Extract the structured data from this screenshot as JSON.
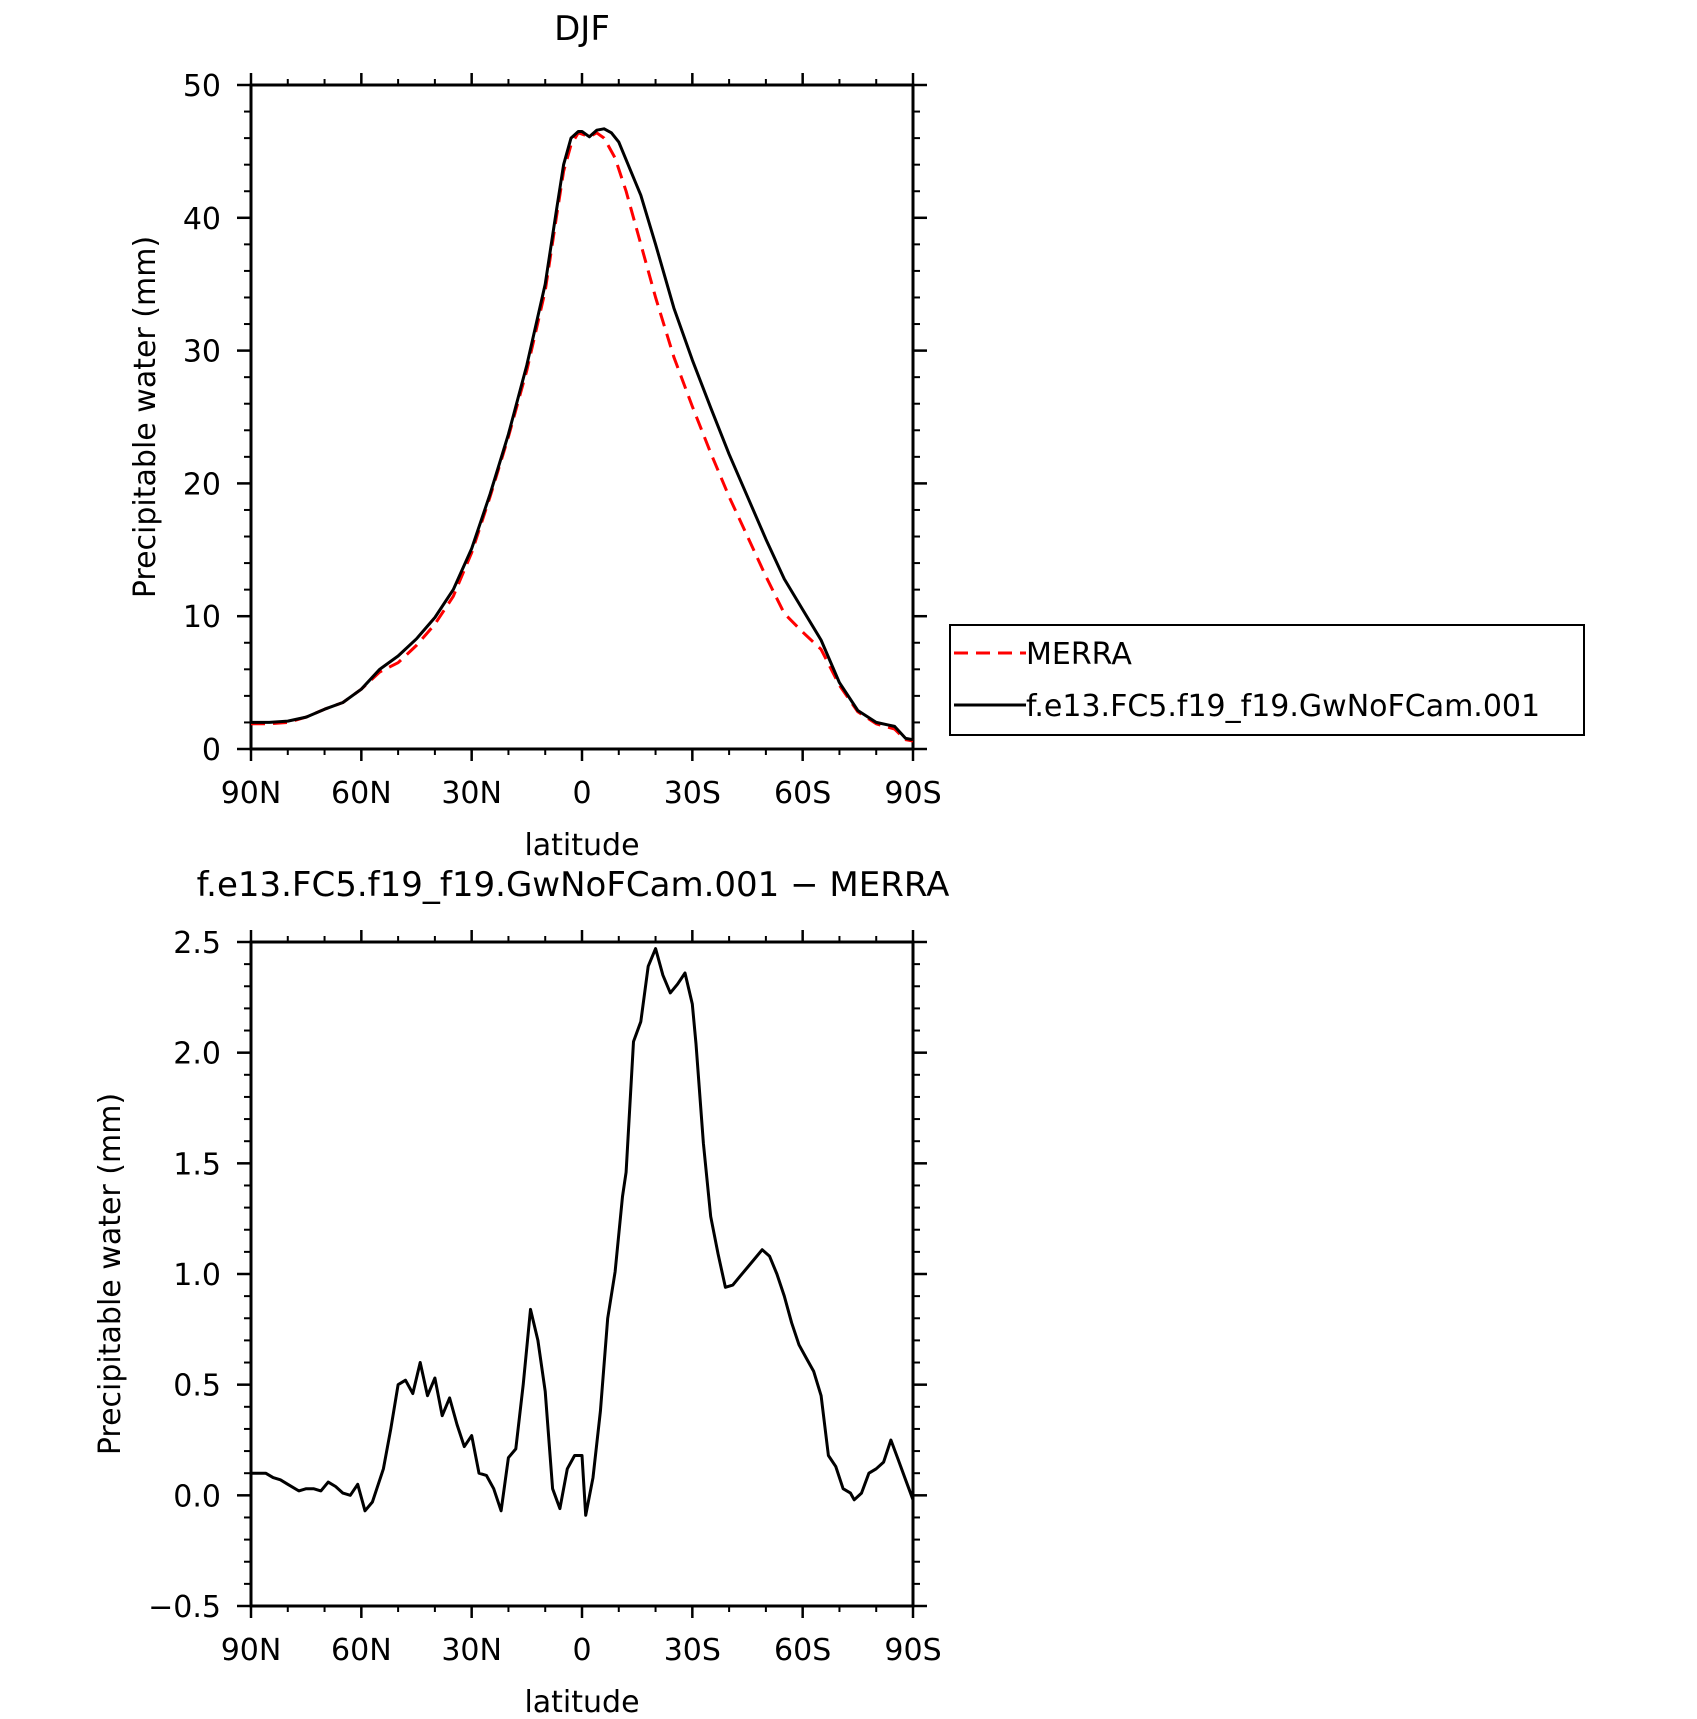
{
  "chart_data": [
    {
      "type": "line",
      "title": "DJF",
      "xlabel": "latitude",
      "ylabel": "Precipitable water (mm)",
      "xlim": [
        90,
        -90
      ],
      "ylim": [
        0,
        50
      ],
      "xticks": [
        90,
        60,
        30,
        0,
        -30,
        -60,
        -90
      ],
      "xtick_labels": [
        "90N",
        "60N",
        "30N",
        "0",
        "30S",
        "60S",
        "90S"
      ],
      "yticks": [
        0,
        10,
        20,
        30,
        40,
        50
      ],
      "ytick_labels": [
        "0",
        "10",
        "20",
        "30",
        "40",
        "50"
      ],
      "legend_position": "right",
      "series": [
        {
          "name": "MERRA",
          "color": "#ff0000",
          "style": "dashed",
          "points": [
            [
              90,
              1.9
            ],
            [
              85,
              1.9
            ],
            [
              80,
              2.0
            ],
            [
              75,
              2.4
            ],
            [
              70,
              3.0
            ],
            [
              65,
              3.5
            ],
            [
              60,
              4.5
            ],
            [
              55,
              5.8
            ],
            [
              50,
              6.5
            ],
            [
              45,
              7.8
            ],
            [
              40,
              9.4
            ],
            [
              35,
              11.5
            ],
            [
              30,
              14.8
            ],
            [
              25,
              19.0
            ],
            [
              20,
              23.5
            ],
            [
              15,
              28.5
            ],
            [
              10,
              34.5
            ],
            [
              7,
              40.0
            ],
            [
              5,
              43.5
            ],
            [
              3,
              45.5
            ],
            [
              1,
              46.4
            ],
            [
              0,
              46.3
            ],
            [
              -2,
              46.1
            ],
            [
              -4,
              46.4
            ],
            [
              -6,
              46.0
            ],
            [
              -9,
              44.5
            ],
            [
              -12,
              42.0
            ],
            [
              -15,
              39.0
            ],
            [
              -20,
              34.0
            ],
            [
              -25,
              29.5
            ],
            [
              -30,
              25.8
            ],
            [
              -35,
              22.3
            ],
            [
              -40,
              19.0
            ],
            [
              -45,
              16.0
            ],
            [
              -50,
              13.0
            ],
            [
              -55,
              10.2
            ],
            [
              -60,
              8.8
            ],
            [
              -65,
              7.5
            ],
            [
              -70,
              4.8
            ],
            [
              -75,
              2.8
            ],
            [
              -80,
              1.9
            ],
            [
              -85,
              1.5
            ],
            [
              -88,
              0.7
            ],
            [
              -90,
              0.6
            ]
          ]
        },
        {
          "name": "f.e13.FC5.f19_f19.GwNoFCam.001",
          "color": "#000000",
          "style": "solid",
          "points": [
            [
              90,
              2.0
            ],
            [
              85,
              2.0
            ],
            [
              80,
              2.1
            ],
            [
              75,
              2.4
            ],
            [
              70,
              3.0
            ],
            [
              65,
              3.5
            ],
            [
              60,
              4.5
            ],
            [
              55,
              6.0
            ],
            [
              50,
              7.0
            ],
            [
              45,
              8.3
            ],
            [
              40,
              9.9
            ],
            [
              35,
              12.0
            ],
            [
              30,
              15.1
            ],
            [
              25,
              19.2
            ],
            [
              20,
              23.7
            ],
            [
              15,
              28.9
            ],
            [
              10,
              35.0
            ],
            [
              7,
              40.5
            ],
            [
              5,
              44.0
            ],
            [
              3,
              46.0
            ],
            [
              1,
              46.5
            ],
            [
              0,
              46.5
            ],
            [
              -2,
              46.1
            ],
            [
              -4,
              46.6
            ],
            [
              -6,
              46.7
            ],
            [
              -8,
              46.4
            ],
            [
              -10,
              45.7
            ],
            [
              -13,
              43.7
            ],
            [
              -16,
              41.7
            ],
            [
              -20,
              38.0
            ],
            [
              -25,
              33.2
            ],
            [
              -30,
              29.3
            ],
            [
              -35,
              25.7
            ],
            [
              -40,
              22.2
            ],
            [
              -45,
              19.0
            ],
            [
              -50,
              15.8
            ],
            [
              -55,
              12.8
            ],
            [
              -60,
              10.5
            ],
            [
              -65,
              8.2
            ],
            [
              -70,
              5.0
            ],
            [
              -75,
              2.9
            ],
            [
              -80,
              2.0
            ],
            [
              -85,
              1.7
            ],
            [
              -88,
              0.8
            ],
            [
              -90,
              0.7
            ]
          ]
        }
      ]
    },
    {
      "type": "line",
      "title": "f.e13.FC5.f19_f19.GwNoFCam.001 − MERRA",
      "xlabel": "latitude",
      "ylabel": "Precipitable water (mm)",
      "xlim": [
        90,
        -90
      ],
      "ylim": [
        -0.5,
        2.5
      ],
      "xticks": [
        90,
        60,
        30,
        0,
        -30,
        -60,
        -90
      ],
      "xtick_labels": [
        "90N",
        "60N",
        "30N",
        "0",
        "30S",
        "60S",
        "90S"
      ],
      "yticks": [
        -0.5,
        0.0,
        0.5,
        1.0,
        1.5,
        2.0,
        2.5
      ],
      "ytick_labels": [
        "−0.5",
        "0.0",
        "0.5",
        "1.0",
        "1.5",
        "2.0",
        "2.5"
      ],
      "series": [
        {
          "color": "#000000",
          "style": "solid",
          "points": [
            [
              90,
              0.1
            ],
            [
              87,
              0.1
            ],
            [
              86,
              0.1
            ],
            [
              84,
              0.08
            ],
            [
              82,
              0.07
            ],
            [
              80,
              0.05
            ],
            [
              77,
              0.02
            ],
            [
              75,
              0.03
            ],
            [
              73,
              0.03
            ],
            [
              71,
              0.02
            ],
            [
              69,
              0.06
            ],
            [
              67,
              0.04
            ],
            [
              65,
              0.01
            ],
            [
              63,
              0.0
            ],
            [
              61,
              0.05
            ],
            [
              59,
              -0.07
            ],
            [
              57,
              -0.03
            ],
            [
              54,
              0.12
            ],
            [
              52,
              0.3
            ],
            [
              50,
              0.5
            ],
            [
              48,
              0.52
            ],
            [
              46,
              0.46
            ],
            [
              44,
              0.6
            ],
            [
              42,
              0.45
            ],
            [
              40,
              0.53
            ],
            [
              38,
              0.36
            ],
            [
              36,
              0.44
            ],
            [
              34,
              0.32
            ],
            [
              32,
              0.22
            ],
            [
              30,
              0.27
            ],
            [
              28,
              0.1
            ],
            [
              26,
              0.09
            ],
            [
              24,
              0.03
            ],
            [
              22,
              -0.07
            ],
            [
              20,
              0.17
            ],
            [
              18,
              0.21
            ],
            [
              16,
              0.5
            ],
            [
              14,
              0.84
            ],
            [
              12,
              0.7
            ],
            [
              10,
              0.47
            ],
            [
              8,
              0.03
            ],
            [
              6,
              -0.06
            ],
            [
              4,
              0.12
            ],
            [
              2,
              0.18
            ],
            [
              0,
              0.18
            ],
            [
              -1,
              -0.09
            ],
            [
              -3,
              0.08
            ],
            [
              -5,
              0.38
            ],
            [
              -7,
              0.8
            ],
            [
              -9,
              1.01
            ],
            [
              -11,
              1.35
            ],
            [
              -12,
              1.46
            ],
            [
              -14,
              2.05
            ],
            [
              -16,
              2.14
            ],
            [
              -18,
              2.39
            ],
            [
              -20,
              2.47
            ],
            [
              -22,
              2.35
            ],
            [
              -24,
              2.27
            ],
            [
              -26,
              2.31
            ],
            [
              -28,
              2.36
            ],
            [
              -30,
              2.22
            ],
            [
              -31,
              2.04
            ],
            [
              -33,
              1.59
            ],
            [
              -35,
              1.26
            ],
            [
              -37,
              1.09
            ],
            [
              -39,
              0.94
            ],
            [
              -41,
              0.95
            ],
            [
              -43,
              0.99
            ],
            [
              -45,
              1.03
            ],
            [
              -47,
              1.07
            ],
            [
              -49,
              1.11
            ],
            [
              -51,
              1.08
            ],
            [
              -53,
              1.0
            ],
            [
              -55,
              0.9
            ],
            [
              -57,
              0.78
            ],
            [
              -59,
              0.68
            ],
            [
              -61,
              0.62
            ],
            [
              -63,
              0.56
            ],
            [
              -65,
              0.45
            ],
            [
              -67,
              0.18
            ],
            [
              -69,
              0.13
            ],
            [
              -71,
              0.03
            ],
            [
              -73,
              0.01
            ],
            [
              -74,
              -0.02
            ],
            [
              -76,
              0.01
            ],
            [
              -78,
              0.1
            ],
            [
              -80,
              0.12
            ],
            [
              -82,
              0.15
            ],
            [
              -84,
              0.25
            ],
            [
              -86,
              0.16
            ],
            [
              -88,
              0.07
            ],
            [
              -90,
              -0.02
            ]
          ]
        }
      ]
    }
  ]
}
